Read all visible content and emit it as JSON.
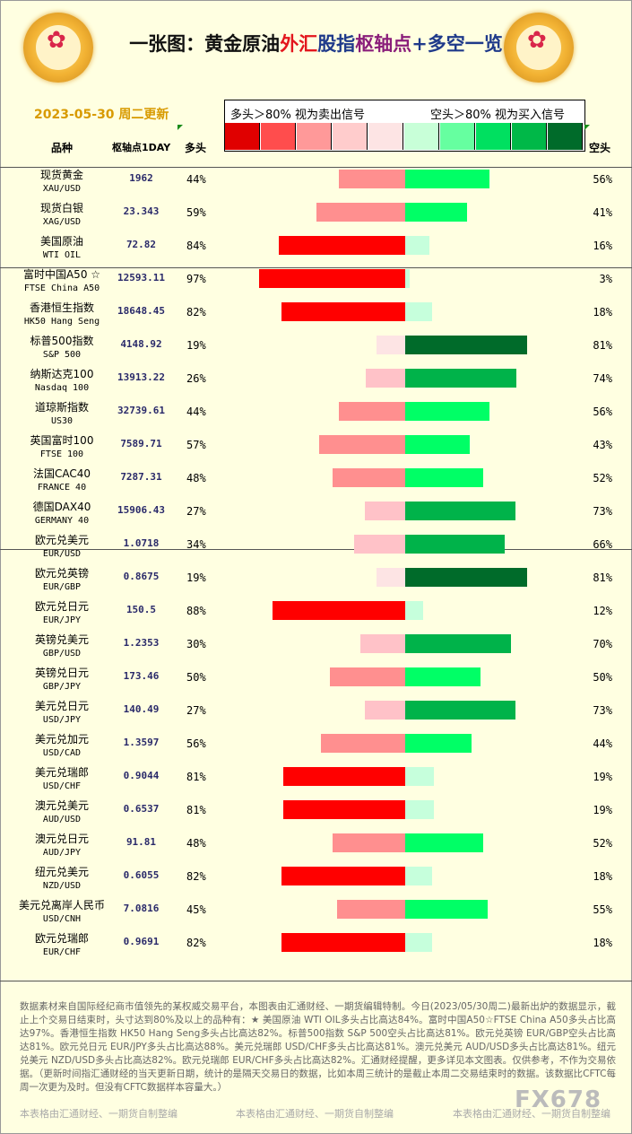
{
  "title": {
    "part1": "一张图：黄金原油",
    "part2": "外汇",
    "part3": "股指",
    "part4": "枢轴点",
    "part5": "+多空一览"
  },
  "date": "2023-05-30 周二更新",
  "legend": {
    "left_text": "多头＞80%  视为卖出信号",
    "right_text": "空头＞80%  视为买入信号",
    "colors": [
      "#e00000",
      "#ff4d4d",
      "#ff9999",
      "#ffcccc",
      "#fde4e4",
      "#c8ffd8",
      "#66ffa0",
      "#00e060",
      "#00b848",
      "#006b2a"
    ]
  },
  "headers": {
    "name": "品种",
    "pivot": "枢轴点1DAY",
    "long": "多头",
    "short": "空头"
  },
  "colors": {
    "long_80": "#ff0000",
    "long_55": "#ff8f8f",
    "long_40": "#ffc2c8",
    "long_low": "#fde4e4",
    "short_low": "#c6ffdc",
    "short_40": "#00ff66",
    "short_65": "#00b34a",
    "short_80": "#006b2a"
  },
  "chart_data": {
    "type": "bar",
    "categories": [
      "现货黄金",
      "现货白银",
      "美国原油",
      "富时中国A50",
      "香港恒生指数",
      "标普500指数",
      "纳斯达克100",
      "道琼斯指数",
      "英国富时100",
      "法国CAC40",
      "德国DAX40",
      "欧元兑美元",
      "欧元兑英镑",
      "欧元兑日元",
      "英镑兑美元",
      "英镑兑日元",
      "美元兑日元",
      "美元兑加元",
      "美元兑瑞郎",
      "澳元兑美元",
      "澳元兑日元",
      "纽元兑美元",
      "美元兑离岸人民币",
      "欧元兑瑞郎"
    ],
    "series": [
      {
        "name": "多头",
        "values": [
          44,
          59,
          84,
          97,
          82,
          19,
          26,
          44,
          57,
          48,
          27,
          34,
          19,
          88,
          30,
          50,
          27,
          56,
          81,
          81,
          48,
          82,
          45,
          82
        ]
      },
      {
        "name": "空头",
        "values": [
          56,
          41,
          16,
          3,
          18,
          81,
          74,
          56,
          43,
          52,
          73,
          66,
          81,
          12,
          70,
          50,
          73,
          44,
          19,
          19,
          52,
          18,
          55,
          18
        ]
      }
    ],
    "ylim": [
      0,
      100
    ]
  },
  "rows": [
    {
      "cn": "现货黄金",
      "en": "XAU/USD",
      "pivot": "1962",
      "long": "44%",
      "short": "56%"
    },
    {
      "cn": "现货白银",
      "en": "XAG/USD",
      "pivot": "23.343",
      "long": "59%",
      "short": "41%"
    },
    {
      "cn": "美国原油",
      "en": "WTI OIL",
      "pivot": "72.82",
      "long": "84%",
      "short": "16%"
    },
    {
      "cn": "富时中国A50 ☆",
      "en": "FTSE China A50",
      "pivot": "12593.11",
      "long": "97%",
      "short": "3%"
    },
    {
      "cn": "香港恒生指数",
      "en": "HK50 Hang Seng",
      "pivot": "18648.45",
      "long": "82%",
      "short": "18%"
    },
    {
      "cn": "标普500指数",
      "en": "S&P 500",
      "pivot": "4148.92",
      "long": "19%",
      "short": "81%"
    },
    {
      "cn": "纳斯达克100",
      "en": "Nasdaq 100",
      "pivot": "13913.22",
      "long": "26%",
      "short": "74%"
    },
    {
      "cn": "道琼斯指数",
      "en": "US30",
      "pivot": "32739.61",
      "long": "44%",
      "short": "56%"
    },
    {
      "cn": "英国富时100",
      "en": "FTSE 100",
      "pivot": "7589.71",
      "long": "57%",
      "short": "43%"
    },
    {
      "cn": "法国CAC40",
      "en": "FRANCE 40",
      "pivot": "7287.31",
      "long": "48%",
      "short": "52%"
    },
    {
      "cn": "德国DAX40",
      "en": "GERMANY 40",
      "pivot": "15906.43",
      "long": "27%",
      "short": "73%"
    },
    {
      "cn": "欧元兑美元",
      "en": "EUR/USD",
      "pivot": "1.0718",
      "long": "34%",
      "short": "66%"
    },
    {
      "cn": "欧元兑英镑",
      "en": "EUR/GBP",
      "pivot": "0.8675",
      "long": "19%",
      "short": "81%"
    },
    {
      "cn": "欧元兑日元",
      "en": "EUR/JPY",
      "pivot": "150.5",
      "long": "88%",
      "short": "12%"
    },
    {
      "cn": "英镑兑美元",
      "en": "GBP/USD",
      "pivot": "1.2353",
      "long": "30%",
      "short": "70%"
    },
    {
      "cn": "英镑兑日元",
      "en": "GBP/JPY",
      "pivot": "173.46",
      "long": "50%",
      "short": "50%"
    },
    {
      "cn": "美元兑日元",
      "en": "USD/JPY",
      "pivot": "140.49",
      "long": "27%",
      "short": "73%"
    },
    {
      "cn": "美元兑加元",
      "en": "USD/CAD",
      "pivot": "1.3597",
      "long": "56%",
      "short": "44%"
    },
    {
      "cn": "美元兑瑞郎",
      "en": "USD/CHF",
      "pivot": "0.9044",
      "long": "81%",
      "short": "19%"
    },
    {
      "cn": "澳元兑美元",
      "en": "AUD/USD",
      "pivot": "0.6537",
      "long": "81%",
      "short": "19%"
    },
    {
      "cn": "澳元兑日元",
      "en": "AUD/JPY",
      "pivot": "91.81",
      "long": "48%",
      "short": "52%"
    },
    {
      "cn": "纽元兑美元",
      "en": "NZD/USD",
      "pivot": "0.6055",
      "long": "82%",
      "short": "18%"
    },
    {
      "cn": "美元兑离岸人民币",
      "en": "USD/CNH",
      "pivot": "7.0816",
      "long": "45%",
      "short": "55%"
    },
    {
      "cn": "欧元兑瑞郎",
      "en": "EUR/CHF",
      "pivot": "0.9691",
      "long": "82%",
      "short": "18%"
    }
  ],
  "footer": "数据素材来自国际经纪商市值领先的某权威交易平台，本图表由汇通财经、一期货编辑特制。今日(2023/05/30周二)最新出炉的数据显示，截止上个交易日结束时，头寸达到80%及以上的品种有：★ 美国原油 WTI OIL多头占比高达84%。富时中国A50☆FTSE China A50多头占比高达97%。香港恒生指数 HK50 Hang Seng多头占比高达82%。标普500指数 S&P 500空头占比高达81%。欧元兑英镑 EUR/GBP空头占比高达81%。欧元兑日元 EUR/JPY多头占比高达88%。美元兑瑞郎 USD/CHF多头占比高达81%。澳元兑美元 AUD/USD多头占比高达81%。纽元兑美元 NZD/USD多头占比高达82%。欧元兑瑞郎 EUR/CHF多头占比高达82%。汇通财经提醒，更多详见本文图表。仅供参考，不作为交易依据。（更新时间指汇通财经的当天更新日期，统计的是隔天交易日的数据，比如本周三统计的是截止本周二交易结束时的数据。该数据比CFTC每周一次更为及时。但没有CFTC数据样本容量大。）",
  "watermark": "本表格由汇通财经、一期货自制整编",
  "brand": "FX678"
}
